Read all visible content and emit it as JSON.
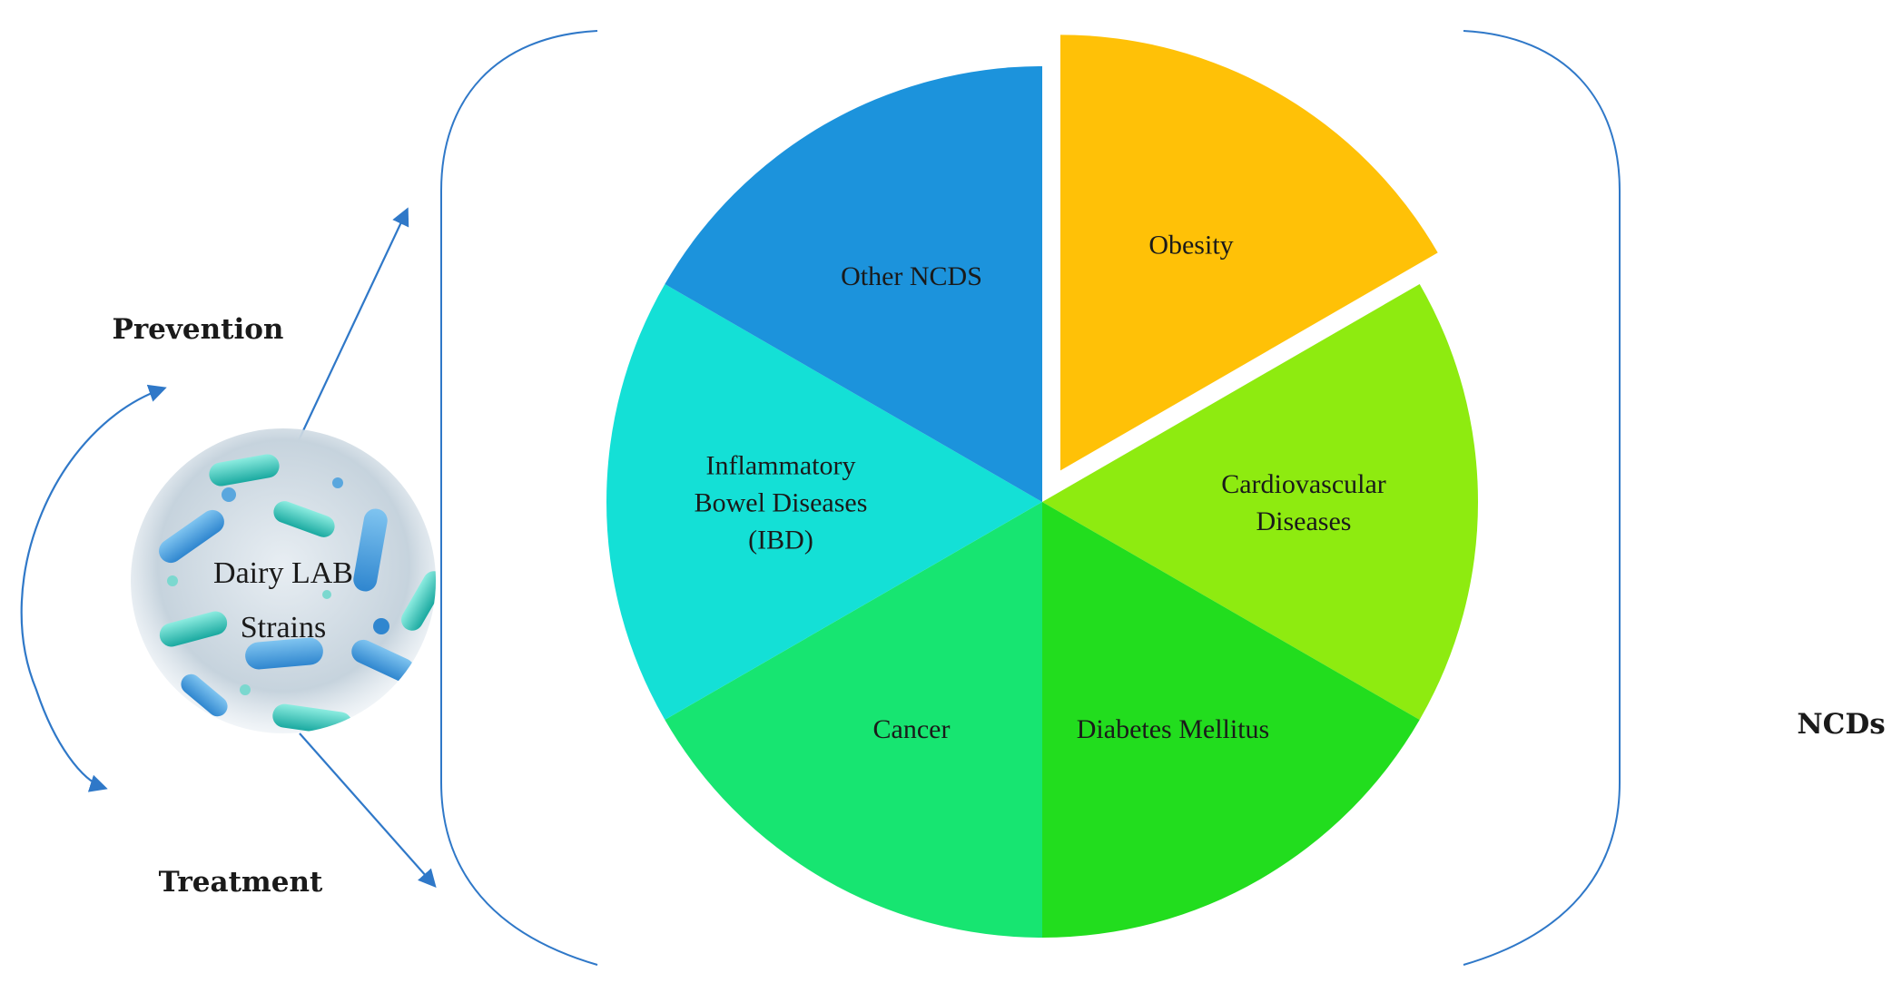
{
  "labels": {
    "prevention": "Prevention",
    "treatment": "Treatment",
    "ncds": "NCDs",
    "strains_line1": "Dairy LAB",
    "strains_line2": "Strains"
  },
  "chart_data": {
    "type": "pie",
    "exploded": "Obesity",
    "slices": [
      {
        "lines": [
          "Obesity"
        ],
        "value": 1,
        "color": "#FFC107"
      },
      {
        "lines": [
          "Cardiovascular",
          "Diseases"
        ],
        "value": 1,
        "color": "#8EEB10"
      },
      {
        "lines": [
          "Diabetes Mellitus"
        ],
        "value": 1,
        "color": "#22DD1E"
      },
      {
        "lines": [
          "Cancer"
        ],
        "value": 1,
        "color": "#17E571"
      },
      {
        "lines": [
          "Inflammatory",
          "Bowel Diseases",
          "(IBD)"
        ],
        "value": 1,
        "color": "#14E0D6"
      },
      {
        "lines": [
          "Other NCDS"
        ],
        "value": 1,
        "color": "#1C93DC"
      }
    ]
  }
}
